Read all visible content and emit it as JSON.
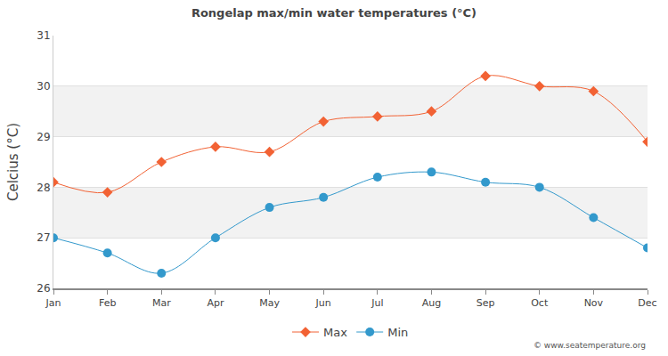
{
  "chart_data": {
    "type": "line",
    "title": "Rongelap max/min water temperatures (°C)",
    "y_label": "Celcius (°C)",
    "categories": [
      "Jan",
      "Feb",
      "Mar",
      "Apr",
      "May",
      "Jun",
      "Jul",
      "Aug",
      "Sep",
      "Oct",
      "Nov",
      "Dec"
    ],
    "series": [
      {
        "name": "Max",
        "color": "#f26234",
        "marker": "diamond",
        "values": [
          28.1,
          27.9,
          28.5,
          28.8,
          28.7,
          29.3,
          29.4,
          29.5,
          30.2,
          30.0,
          29.9,
          28.9
        ]
      },
      {
        "name": "Min",
        "color": "#3399cc",
        "marker": "circle",
        "values": [
          27.0,
          26.7,
          26.3,
          27.0,
          27.6,
          27.8,
          28.2,
          28.3,
          28.1,
          28.0,
          27.4,
          26.8
        ]
      }
    ],
    "ylim": [
      26,
      31
    ],
    "yticks": [
      26,
      27,
      28,
      29,
      30,
      31
    ],
    "grid": true,
    "legend": "bottom",
    "line_style": "smooth",
    "annotations": [
      "© www.seatemperature.org"
    ]
  }
}
